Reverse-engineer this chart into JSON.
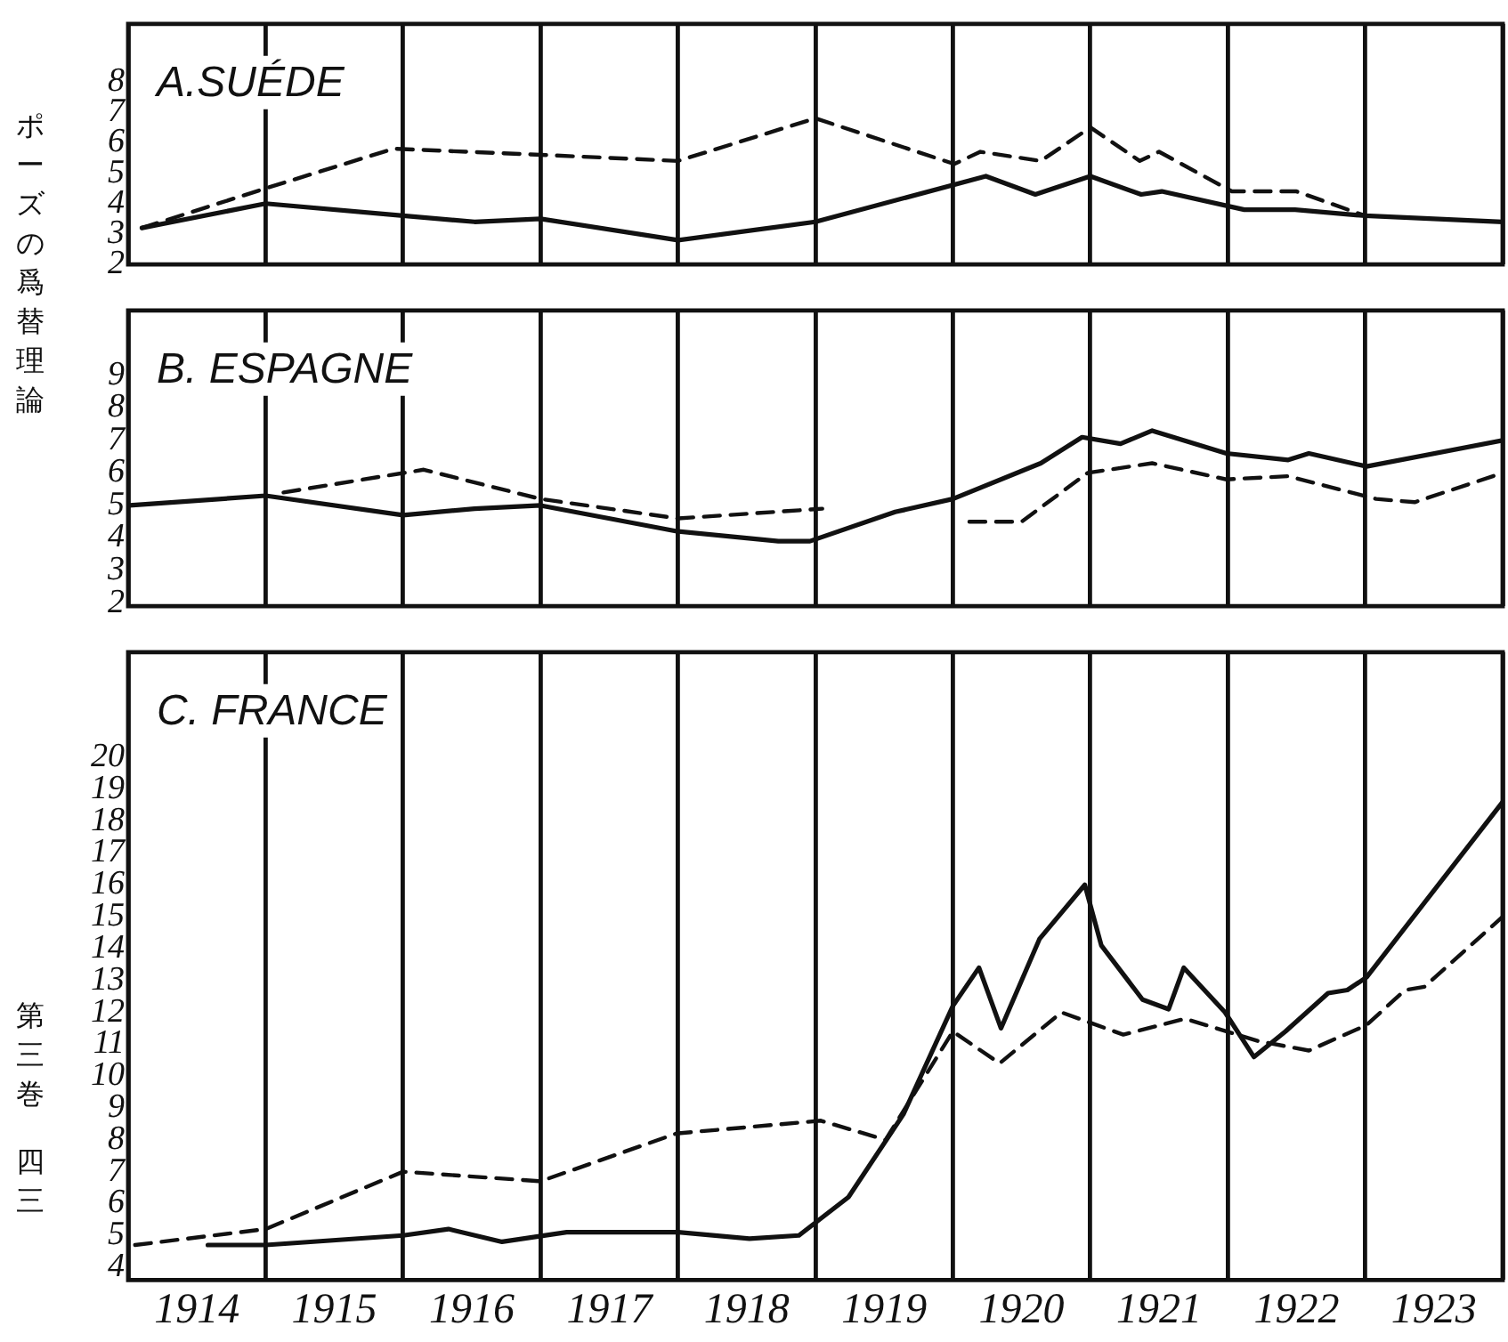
{
  "chart_data": [
    {
      "type": "line",
      "title": "A.SUÉDE",
      "annotations": [
        "ポーズの爲替理論"
      ],
      "xlim": [
        1914,
        1924
      ],
      "xticks": [
        {
          "value": 1914,
          "label": null
        },
        {
          "value": 1915,
          "label": null
        },
        {
          "value": 1916,
          "label": null
        },
        {
          "value": 1917,
          "label": null
        },
        {
          "value": 1918,
          "label": null
        },
        {
          "value": 1919,
          "label": null
        },
        {
          "value": 1920,
          "label": null
        },
        {
          "value": 1921,
          "label": null
        },
        {
          "value": 1922,
          "label": null
        },
        {
          "value": 1923,
          "label": null
        },
        {
          "value": 1924,
          "label": null
        }
      ],
      "ylim": [
        2,
        9.9
      ],
      "yticks": [
        2,
        3,
        4,
        5,
        6,
        7,
        8
      ],
      "grid": "x",
      "tick_labels": "y",
      "series": [
        {
          "color": "#111111",
          "line_style": "solid",
          "x": [
            1914.1,
            1915.0,
            1916.0,
            1916.52,
            1917.0,
            1918.0,
            1919.0,
            1920.24,
            1920.6,
            1921.0,
            1921.37,
            1921.52,
            1922.12,
            1922.49,
            1923.0,
            1924.0
          ],
          "values": [
            3.2,
            4.0,
            3.6,
            3.4,
            3.5,
            2.8,
            3.4,
            4.9,
            4.3,
            4.9,
            4.3,
            4.4,
            3.8,
            3.8,
            3.6,
            3.4
          ]
        },
        {
          "color": "#111111",
          "line_style": "dashed",
          "x": [
            1914.1,
            1915.0,
            1915.93,
            1917.0,
            1918.0,
            1919.0,
            1920.01,
            1920.2,
            1920.64,
            1921.0,
            1921.36,
            1921.5,
            1922.03,
            1922.5,
            1923.0
          ],
          "values": [
            3.2,
            4.5,
            5.8,
            5.6,
            5.4,
            6.8,
            5.3,
            5.7,
            5.4,
            6.5,
            5.4,
            5.7,
            4.4,
            4.4,
            3.6
          ]
        }
      ]
    },
    {
      "type": "line",
      "title": "B. ESPAGNE",
      "xlim": [
        1914,
        1924
      ],
      "xticks": [
        {
          "value": 1914,
          "label": null
        },
        {
          "value": 1915,
          "label": null
        },
        {
          "value": 1916,
          "label": null
        },
        {
          "value": 1917,
          "label": null
        },
        {
          "value": 1918,
          "label": null
        },
        {
          "value": 1919,
          "label": null
        },
        {
          "value": 1920,
          "label": null
        },
        {
          "value": 1921,
          "label": null
        },
        {
          "value": 1922,
          "label": null
        },
        {
          "value": 1923,
          "label": null
        },
        {
          "value": 1924,
          "label": null
        }
      ],
      "ylim": [
        1.9,
        11
      ],
      "yticks": [
        2,
        3,
        4,
        5,
        6,
        7,
        8,
        9
      ],
      "grid": "x",
      "tick_labels": "y",
      "series": [
        {
          "color": "#111111",
          "line_style": "solid",
          "x": [
            1914.01,
            1915.0,
            1916.0,
            1916.52,
            1917.0,
            1918.0,
            1918.73,
            1918.96,
            1919.58,
            1920.0,
            1920.64,
            1920.94,
            1921.22,
            1921.45,
            1921.99,
            1922.44,
            1922.59,
            1923.01,
            1924.0
          ],
          "values": [
            5.0,
            5.3,
            4.7,
            4.9,
            5.0,
            4.2,
            3.9,
            3.9,
            4.8,
            5.2,
            6.3,
            7.1,
            6.9,
            7.3,
            6.6,
            6.4,
            6.6,
            6.2,
            7.0
          ]
        },
        {
          "color": "#111111",
          "line_style": "dashed",
          "x": [
            1915.13,
            1916.15,
            1917.0,
            1918.0,
            1919.05,
            1919.6,
            1920.12,
            1920.5,
            1920.98,
            1921.45,
            1921.99,
            1922.44,
            1923.08,
            1923.36,
            1924.0
          ],
          "values": [
            5.4,
            6.1,
            5.2,
            4.6,
            4.9,
            null,
            4.5,
            4.5,
            6.0,
            6.3,
            5.8,
            5.9,
            5.2,
            5.1,
            6.0
          ]
        }
      ]
    },
    {
      "type": "line",
      "title": "C. FRANCE",
      "annotations": [
        "第三巻",
        "四三"
      ],
      "xlim": [
        1914,
        1924
      ],
      "xticks": [
        {
          "value": 1914,
          "label": null
        },
        {
          "value": 1914.5,
          "label": "1914"
        },
        {
          "value": 1915,
          "label": null
        },
        {
          "value": 1915.5,
          "label": "1915"
        },
        {
          "value": 1916,
          "label": null
        },
        {
          "value": 1916.5,
          "label": "1916"
        },
        {
          "value": 1917,
          "label": null
        },
        {
          "value": 1917.5,
          "label": "1917"
        },
        {
          "value": 1918,
          "label": null
        },
        {
          "value": 1918.5,
          "label": "1918"
        },
        {
          "value": 1919,
          "label": null
        },
        {
          "value": 1919.5,
          "label": "1919"
        },
        {
          "value": 1920,
          "label": null
        },
        {
          "value": 1920.5,
          "label": "1920"
        },
        {
          "value": 1921,
          "label": null
        },
        {
          "value": 1921.5,
          "label": "1921"
        },
        {
          "value": 1922,
          "label": null
        },
        {
          "value": 1922.5,
          "label": "1922"
        },
        {
          "value": 1923,
          "label": null
        },
        {
          "value": 1923.5,
          "label": "1923"
        },
        {
          "value": 1924,
          "label": null
        }
      ],
      "ylim": [
        3.6,
        23.3
      ],
      "yticks": [
        4,
        5,
        6,
        7,
        8,
        9,
        10,
        11,
        12,
        13,
        14,
        15,
        16,
        17,
        18,
        19,
        20
      ],
      "grid": "x",
      "series": [
        {
          "color": "#111111",
          "line_style": "solid",
          "x": [
            1914.58,
            1915.0,
            1916.0,
            1916.33,
            1916.72,
            1917.19,
            1918.0,
            1918.52,
            1918.88,
            1919.24,
            1919.64,
            1920.0,
            1920.19,
            1920.35,
            1920.63,
            1920.96,
            1921.08,
            1921.38,
            1921.57,
            1921.68,
            1921.98,
            1922.19,
            1922.42,
            1922.73,
            1922.87,
            1923.01,
            1924.0
          ],
          "values": [
            4.7,
            4.7,
            5.0,
            5.2,
            4.8,
            5.1,
            5.1,
            4.9,
            5.0,
            6.2,
            8.8,
            12.2,
            13.4,
            11.5,
            14.3,
            16.0,
            14.1,
            12.4,
            12.1,
            13.4,
            12.0,
            10.6,
            11.4,
            12.6,
            12.7,
            13.1,
            18.6
          ]
        },
        {
          "color": "#111111",
          "line_style": "dashed",
          "x": [
            1914.05,
            1915.0,
            1916.0,
            1917.0,
            1917.99,
            1919.04,
            1919.51,
            1920.0,
            1920.34,
            1920.79,
            1921.24,
            1921.69,
            1922.22,
            1922.59,
            1923.01,
            1923.29,
            1923.43,
            1924.0
          ],
          "values": [
            4.7,
            5.2,
            7.0,
            6.7,
            8.2,
            8.6,
            8.0,
            11.4,
            10.4,
            12.0,
            11.3,
            11.8,
            11.1,
            10.8,
            11.6,
            12.7,
            12.8,
            15.0
          ]
        }
      ]
    }
  ]
}
